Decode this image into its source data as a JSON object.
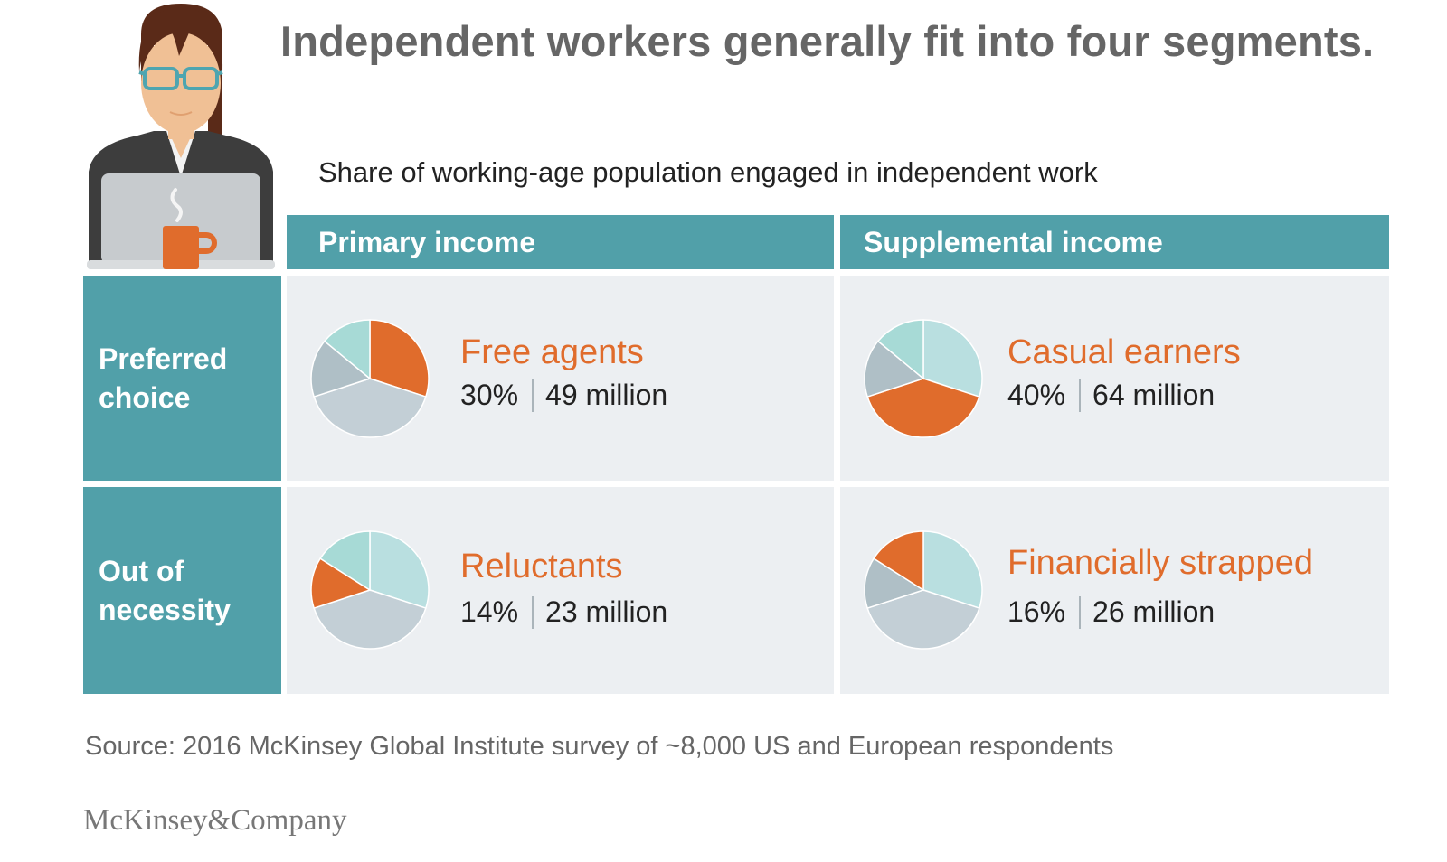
{
  "title": "Independent workers generally fit into four segments.",
  "subtitle": "Share of working-age population engaged in independent work",
  "columns": [
    "Primary income",
    "Supplemental income"
  ],
  "rows": [
    {
      "line1": "Preferred",
      "line2": "choice"
    },
    {
      "line1": "Out of",
      "line2": "necessity"
    }
  ],
  "colors": {
    "header_teal": "#51a0a9",
    "cell_bg": "#eceff2",
    "highlight_orange": "#e06c2c",
    "slice_light_teal": "#b9dfe0",
    "slice_light_gray": "#c3cfd6",
    "slice_gray": "#afbfc6",
    "slice_mint": "#a7dad6"
  },
  "chart_data": [
    {
      "type": "pie",
      "name": "Free agents",
      "highlight": "Free agents",
      "slices": [
        {
          "label": "Free agents",
          "value": 30,
          "color": "#e06c2c"
        },
        {
          "label": "Casual earners",
          "value": 40,
          "color": "#c3cfd6"
        },
        {
          "label": "Financially strapped",
          "value": 16,
          "color": "#afbfc6"
        },
        {
          "label": "Reluctants",
          "value": 14,
          "color": "#a7dad6"
        }
      ],
      "percent_label": "30%",
      "population_label": "49 million"
    },
    {
      "type": "pie",
      "name": "Casual earners",
      "highlight": "Casual earners",
      "slices": [
        {
          "label": "Free agents",
          "value": 30,
          "color": "#b9dfe0"
        },
        {
          "label": "Casual earners",
          "value": 40,
          "color": "#e06c2c"
        },
        {
          "label": "Financially strapped",
          "value": 16,
          "color": "#afbfc6"
        },
        {
          "label": "Reluctants",
          "value": 14,
          "color": "#a7dad6"
        }
      ],
      "percent_label": "40%",
      "population_label": "64 million"
    },
    {
      "type": "pie",
      "name": "Reluctants",
      "highlight": "Reluctants",
      "slices": [
        {
          "label": "Free agents",
          "value": 30,
          "color": "#b9dfe0"
        },
        {
          "label": "Casual earners",
          "value": 40,
          "color": "#c3cfd6"
        },
        {
          "label": "Reluctants",
          "value": 14,
          "color": "#e06c2c"
        },
        {
          "label": "Financially strapped",
          "value": 16,
          "color": "#a7dad6"
        }
      ],
      "percent_label": "14%",
      "population_label": "23 million"
    },
    {
      "type": "pie",
      "name": "Financially strapped",
      "highlight": "Financially strapped",
      "slices": [
        {
          "label": "Free agents",
          "value": 30,
          "color": "#b9dfe0"
        },
        {
          "label": "Casual earners",
          "value": 40,
          "color": "#c3cfd6"
        },
        {
          "label": "Reluctants",
          "value": 14,
          "color": "#afbfc6"
        },
        {
          "label": "Financially strapped",
          "value": 16,
          "color": "#e06c2c"
        }
      ],
      "percent_label": "16%",
      "population_label": "26 million"
    }
  ],
  "source": "Source: 2016 McKinsey Global Institute survey of ~8,000 US and European respondents",
  "brand": "McKinsey&Company",
  "illustration": {
    "figure": "woman-with-glasses-icon",
    "laptop": "laptop-icon",
    "mug": "coffee-mug-icon"
  }
}
